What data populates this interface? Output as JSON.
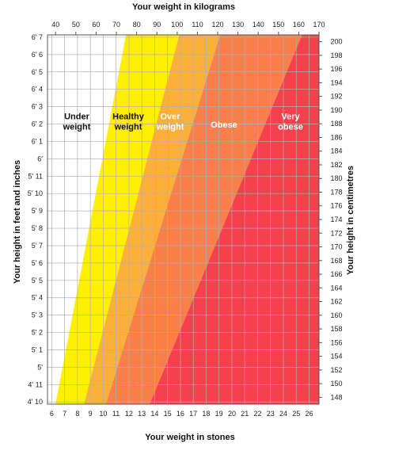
{
  "chart_data": {
    "type": "area",
    "x_top_label": "Your weight in kilograms",
    "x_bottom_label": "Your weight in stones",
    "y_left_label": "Your height in feet and inches",
    "y_right_label": "Your height in centimetres",
    "x_top_ticks": [
      40,
      50,
      60,
      70,
      80,
      90,
      100,
      110,
      120,
      130,
      140,
      150,
      160,
      170
    ],
    "x_bottom_ticks": [
      6,
      7,
      8,
      9,
      10,
      11,
      12,
      13,
      14,
      15,
      16,
      17,
      18,
      19,
      20,
      21,
      22,
      23,
      24,
      25,
      26
    ],
    "y_left_ticks": [
      "4' 10",
      "4' 11",
      "5'",
      "5' 1",
      "5' 2",
      "5' 3",
      "5' 4",
      "5' 5",
      "5' 6",
      "5' 7",
      "5' 8",
      "5' 9",
      "5' 10",
      "5' 11",
      "6'",
      "6' 1",
      "6' 2",
      "6' 3",
      "6' 4",
      "6' 5",
      "6' 6",
      "6' 7"
    ],
    "y_right_ticks": [
      148,
      150,
      152,
      154,
      156,
      158,
      160,
      162,
      164,
      166,
      168,
      170,
      172,
      174,
      176,
      178,
      180,
      182,
      184,
      186,
      188,
      190,
      192,
      194,
      196,
      198,
      200
    ],
    "xlim_kg": [
      36,
      170
    ],
    "ylim_cm": [
      147,
      201
    ],
    "bmi_categories": [
      {
        "name": "Under weight",
        "label_lines": [
          "Under",
          "weight"
        ],
        "bmi_from": 0,
        "bmi_to": 18.5,
        "color": "#ffffff",
        "text_color": "#111111"
      },
      {
        "name": "Healthy weight",
        "label_lines": [
          "Healthy",
          "weight"
        ],
        "bmi_from": 18.5,
        "bmi_to": 25,
        "color": "#ffef00",
        "text_color": "#111111"
      },
      {
        "name": "Over weight",
        "label_lines": [
          "Over",
          "weight"
        ],
        "bmi_from": 25,
        "bmi_to": 30,
        "color": "#fbb03b",
        "text_color": "#ffffff"
      },
      {
        "name": "Obese",
        "label_lines": [
          "Obese"
        ],
        "bmi_from": 30,
        "bmi_to": 40,
        "color": "#f9804a",
        "text_color": "#ffffff"
      },
      {
        "name": "Very obese",
        "label_lines": [
          "Very",
          "obese"
        ],
        "bmi_from": 40,
        "bmi_to": 1000,
        "color": "#f5404d",
        "text_color": "#ffffff"
      }
    ],
    "grid": true
  }
}
